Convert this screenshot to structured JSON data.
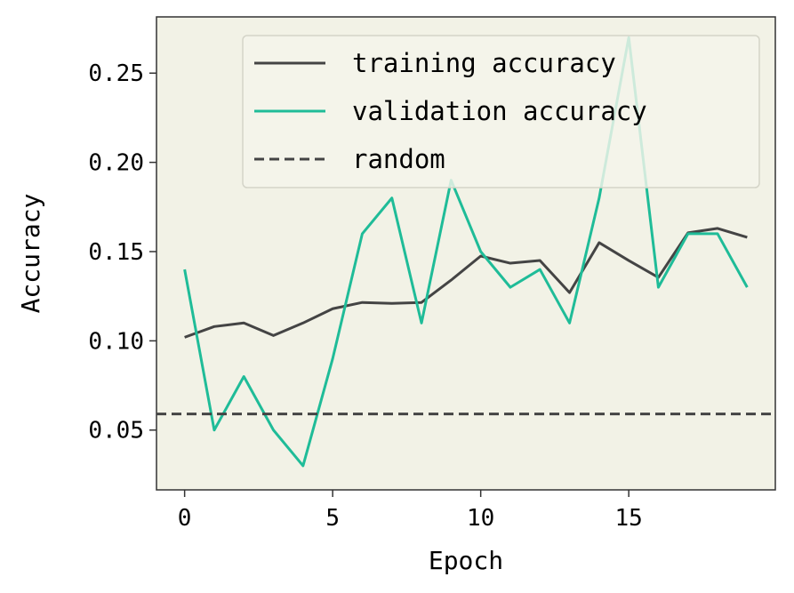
{
  "chart_data": {
    "type": "line",
    "xlabel": "Epoch",
    "ylabel": "Accuracy",
    "xlim": [
      -0.95,
      19.95
    ],
    "ylim": [
      0.0165,
      0.2815
    ],
    "xticks": [
      0,
      5,
      10,
      15
    ],
    "xtick_labels": [
      "0",
      "5",
      "10",
      "15"
    ],
    "yticks": [
      0.05,
      0.1,
      0.15,
      0.2,
      0.25
    ],
    "ytick_labels": [
      "0.05",
      "0.10",
      "0.15",
      "0.20",
      "0.25"
    ],
    "grid": false,
    "legend_position": "top-right",
    "x": [
      0,
      1,
      2,
      3,
      4,
      5,
      6,
      7,
      8,
      9,
      10,
      11,
      12,
      13,
      14,
      15,
      16,
      17,
      18,
      19
    ],
    "series": [
      {
        "name": "training accuracy",
        "color": "#444444",
        "style": "solid",
        "values": [
          0.102,
          0.108,
          0.11,
          0.103,
          0.11,
          0.118,
          0.1215,
          0.121,
          0.1215,
          0.134,
          0.1475,
          0.1435,
          0.145,
          0.127,
          0.155,
          0.145,
          0.1355,
          0.1605,
          0.163,
          0.158
        ]
      },
      {
        "name": "validation accuracy",
        "color": "#1fbc98",
        "style": "solid",
        "values": [
          0.14,
          0.05,
          0.08,
          0.05,
          0.03,
          0.09,
          0.16,
          0.18,
          0.11,
          0.19,
          0.15,
          0.13,
          0.14,
          0.11,
          0.18,
          0.27,
          0.13,
          0.16,
          0.16,
          0.13
        ]
      },
      {
        "name": "random",
        "color": "#444444",
        "style": "dashed",
        "constant": 0.059
      }
    ]
  },
  "colors": {
    "plot_background": "#f2f2e6",
    "axis": "#333333"
  }
}
